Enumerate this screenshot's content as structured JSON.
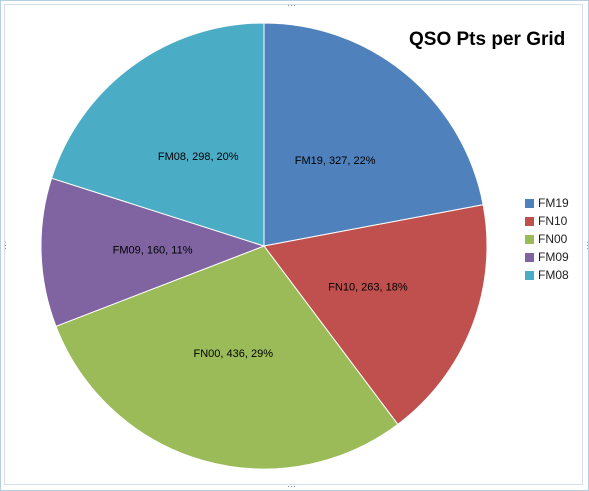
{
  "chart_data": {
    "type": "pie",
    "title": "QSO Pts per Grid",
    "categories": [
      "FM19",
      "FN10",
      "FN00",
      "FM09",
      "FM08"
    ],
    "values": [
      327,
      263,
      436,
      160,
      298
    ],
    "percents": [
      "22%",
      "18%",
      "29%",
      "11%",
      "20%"
    ],
    "data_labels": [
      "FM19, 327, 22%",
      "FN10, 263, 18%",
      "FN00, 436, 29%",
      "FM09, 160, 11%",
      "FM08, 298, 20%"
    ],
    "colors": [
      "#4f81bd",
      "#c0504d",
      "#9bbb59",
      "#8064a2",
      "#4bacc6"
    ],
    "legend_position": "right",
    "start_angle_deg": 0,
    "direction": "clockwise"
  },
  "icons": {
    "resize_handle": "⋯"
  }
}
